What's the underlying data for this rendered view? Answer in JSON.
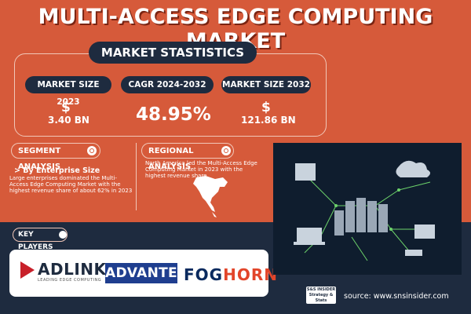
{
  "title": "MULTI-ACCESS EDGE COMPUTING MARKET",
  "stats": {
    "heading": "MARKET STASTISTICS",
    "market_size_2023_label": "MARKET SIZE 2023",
    "market_size_2023_dollar": "$",
    "market_size_2023_value": "3.40 BN",
    "cagr_label": "CAGR 2024-2032",
    "cagr_value": "48.95%",
    "market_size_2032_label": "MARKET SIZE 2032",
    "market_size_2032_dollar": "$",
    "market_size_2032_value": "121.86 BN"
  },
  "segment": {
    "heading": "SEGMENT ANALYSIS",
    "subheading": "> By Enterprise Size",
    "text": "Large enterprises dominated the Multi-Access Edge Computing Market with the highest revenue share of about 62% in 2023"
  },
  "regional": {
    "heading": "REGIONAL ANALYSIS",
    "text": "North America led the Multi-Access Edge Computing Market in 2023 with the highest revenue share."
  },
  "key_players": {
    "heading": "KEY PLAYERS",
    "adlink": "ADLINK",
    "adlink_tagline": "LEADING EDGE COMPUTING",
    "advantech": "ADVANTECH",
    "foghorn_a": "FOG",
    "foghorn_b": "HORN"
  },
  "source": "source: www.snsinsider.com",
  "source_logo_text": "S&S INSIDER Strategy & Stats",
  "colors": {
    "background": "#d65a3a",
    "navy": "#1e2b3f",
    "white": "#ffffff"
  }
}
